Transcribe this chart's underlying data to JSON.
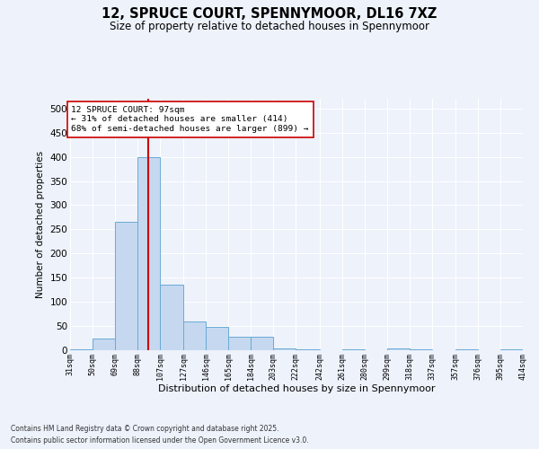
{
  "title": "12, SPRUCE COURT, SPENNYMOOR, DL16 7XZ",
  "subtitle": "Size of property relative to detached houses in Spennymoor",
  "xlabel": "Distribution of detached houses by size in Spennymoor",
  "ylabel": "Number of detached properties",
  "footnote1": "Contains HM Land Registry data © Crown copyright and database right 2025.",
  "footnote2": "Contains public sector information licensed under the Open Government Licence v3.0.",
  "annotation_title": "12 SPRUCE COURT: 97sqm",
  "annotation_line1": "← 31% of detached houses are smaller (414)",
  "annotation_line2": "68% of semi-detached houses are larger (899) →",
  "property_size": 97,
  "bar_color": "#c5d8f0",
  "bar_edge_color": "#6aaad4",
  "vline_color": "#cc0000",
  "background_color": "#edf2fb",
  "grid_color": "#ffffff",
  "annotation_box_color": "#ffffff",
  "annotation_box_edge": "#cc0000",
  "bins": [
    31,
    50,
    69,
    88,
    107,
    127,
    146,
    165,
    184,
    203,
    222,
    242,
    261,
    280,
    299,
    318,
    337,
    357,
    376,
    395,
    414
  ],
  "counts": [
    2,
    25,
    265,
    400,
    135,
    60,
    48,
    28,
    28,
    3,
    2,
    0,
    2,
    0,
    3,
    2,
    0,
    1,
    0,
    1
  ],
  "ylim": [
    0,
    520
  ],
  "yticks": [
    0,
    50,
    100,
    150,
    200,
    250,
    300,
    350,
    400,
    450,
    500
  ],
  "bin_labels": [
    "31sqm",
    "50sqm",
    "69sqm",
    "88sqm",
    "107sqm",
    "127sqm",
    "146sqm",
    "165sqm",
    "184sqm",
    "203sqm",
    "222sqm",
    "242sqm",
    "261sqm",
    "280sqm",
    "299sqm",
    "318sqm",
    "337sqm",
    "357sqm",
    "376sqm",
    "395sqm",
    "414sqm"
  ]
}
